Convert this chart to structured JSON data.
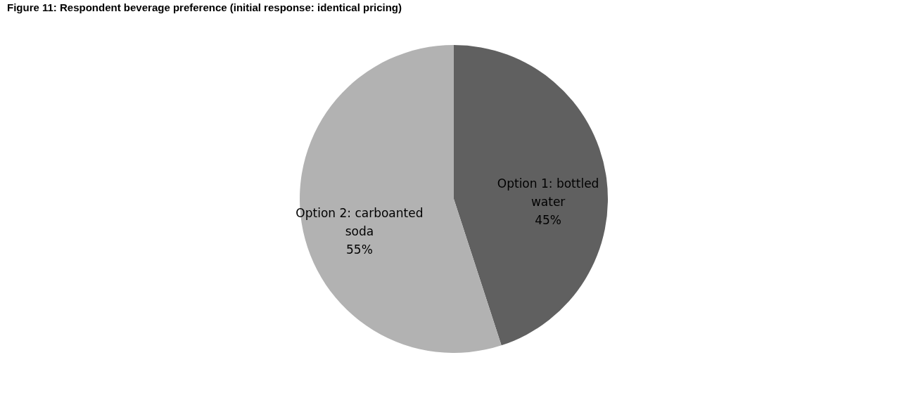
{
  "chart_data": {
    "type": "pie",
    "title": "Figure 11: Respondent beverage preference (initial response: identical pricing)",
    "categories": [
      "Option 1: bottled water",
      "Option 2: carboanted soda"
    ],
    "values": [
      45,
      55
    ],
    "value_labels": [
      "45%",
      "55%"
    ],
    "colors": [
      "#606060",
      "#b2b2b2"
    ],
    "legend": false
  }
}
